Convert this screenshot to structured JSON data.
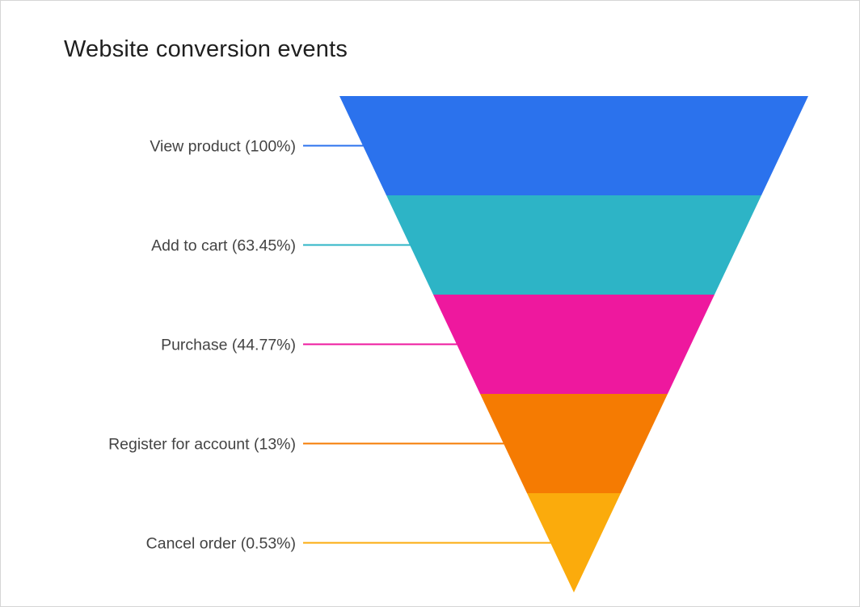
{
  "chart": {
    "title": "Website conversion events",
    "title_color": "#1f1f1f",
    "label_color": "#434343",
    "background": "#ffffff",
    "border_color": "#d6d6d6"
  },
  "chart_data": {
    "type": "funnel",
    "title": "Website conversion events",
    "shape": "inverted-triangle-equal-height-slices",
    "legend": "none",
    "grid": false,
    "stages": [
      {
        "label": "View product",
        "value_pct": 100,
        "display": "View product (100%)",
        "color": "#2b72ed"
      },
      {
        "label": "Add to cart",
        "value_pct": 63.45,
        "display": "Add to cart (63.45%)",
        "color": "#2db4c6"
      },
      {
        "label": "Purchase",
        "value_pct": 44.77,
        "display": "Purchase (44.77%)",
        "color": "#ee189e"
      },
      {
        "label": "Register for account",
        "value_pct": 13,
        "display": "Register for account (13%)",
        "color": "#f57b02"
      },
      {
        "label": "Cancel order",
        "value_pct": 0.53,
        "display": "Cancel order (0.53%)",
        "color": "#fbab0c"
      }
    ]
  }
}
